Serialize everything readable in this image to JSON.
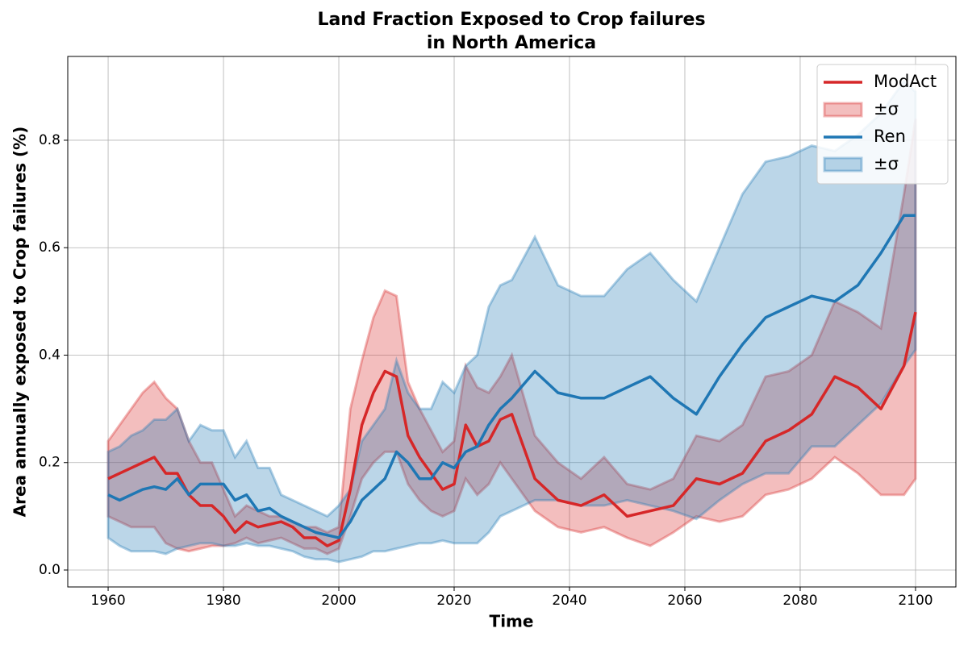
{
  "chart_data": {
    "type": "line",
    "title": "Land Fraction Exposed to Crop failures\nin North America",
    "xlabel": "Time",
    "ylabel": "Area annually exposed to Crop failures (%)",
    "xlim": [
      1953,
      2107
    ],
    "ylim": [
      -0.0315,
      0.956
    ],
    "xticks": [
      1960,
      1980,
      2000,
      2020,
      2040,
      2060,
      2080,
      2100
    ],
    "yticks": [
      {
        "value": 0,
        "label": "0.0"
      },
      0.2,
      0.4,
      0.6,
      0.8
    ],
    "grid": true,
    "legend": "upper right",
    "x": [
      1960,
      1962,
      1964,
      1966,
      1968,
      1970,
      1972,
      1974,
      1976,
      1978,
      1980,
      1982,
      1984,
      1986,
      1988,
      1990,
      1992,
      1994,
      1996,
      1998,
      2000,
      2002,
      2004,
      2006,
      2008,
      2010,
      2012,
      2014,
      2016,
      2018,
      2020,
      2022,
      2024,
      2026,
      2028,
      2030,
      2034,
      2038,
      2042,
      2046,
      2050,
      2054,
      2058,
      2062,
      2066,
      2070,
      2074,
      2078,
      2082,
      2086,
      2090,
      2094,
      2098,
      2100
    ],
    "series": [
      {
        "name": "ModAct",
        "color": "#d62728",
        "values": [
          0.17,
          0.18,
          0.19,
          0.2,
          0.21,
          0.18,
          0.18,
          0.14,
          0.12,
          0.12,
          0.1,
          0.07,
          0.09,
          0.08,
          0.085,
          0.09,
          0.08,
          0.06,
          0.06,
          0.045,
          0.055,
          0.15,
          0.27,
          0.33,
          0.37,
          0.36,
          0.25,
          0.21,
          0.18,
          0.15,
          0.16,
          0.27,
          0.23,
          0.24,
          0.28,
          0.29,
          0.17,
          0.13,
          0.12,
          0.14,
          0.1,
          0.11,
          0.12,
          0.17,
          0.16,
          0.18,
          0.24,
          0.26,
          0.29,
          0.36,
          0.34,
          0.3,
          0.38,
          0.48
        ],
        "band": {
          "name": "±σ",
          "color": "#d62728",
          "lower": [
            0.1,
            0.09,
            0.08,
            0.08,
            0.08,
            0.05,
            0.04,
            0.035,
            0.04,
            0.045,
            0.045,
            0.05,
            0.06,
            0.05,
            0.055,
            0.06,
            0.05,
            0.04,
            0.04,
            0.03,
            0.04,
            0.1,
            0.17,
            0.2,
            0.22,
            0.22,
            0.16,
            0.13,
            0.11,
            0.1,
            0.11,
            0.17,
            0.14,
            0.16,
            0.2,
            0.17,
            0.11,
            0.08,
            0.07,
            0.08,
            0.06,
            0.045,
            0.07,
            0.1,
            0.09,
            0.1,
            0.14,
            0.15,
            0.17,
            0.21,
            0.18,
            0.14,
            0.14,
            0.17
          ],
          "upper": [
            0.24,
            0.27,
            0.3,
            0.33,
            0.35,
            0.32,
            0.3,
            0.24,
            0.2,
            0.2,
            0.15,
            0.1,
            0.12,
            0.11,
            0.1,
            0.1,
            0.09,
            0.08,
            0.08,
            0.07,
            0.08,
            0.3,
            0.39,
            0.47,
            0.52,
            0.51,
            0.35,
            0.3,
            0.26,
            0.22,
            0.24,
            0.38,
            0.34,
            0.33,
            0.36,
            0.4,
            0.25,
            0.2,
            0.17,
            0.21,
            0.16,
            0.15,
            0.17,
            0.25,
            0.24,
            0.27,
            0.36,
            0.37,
            0.4,
            0.5,
            0.48,
            0.45,
            0.7,
            0.84
          ]
        }
      },
      {
        "name": "Ren",
        "color": "#1f77b4",
        "values": [
          0.14,
          0.13,
          0.14,
          0.15,
          0.155,
          0.15,
          0.17,
          0.14,
          0.16,
          0.16,
          0.16,
          0.13,
          0.14,
          0.11,
          0.115,
          0.1,
          0.09,
          0.08,
          0.07,
          0.065,
          0.06,
          0.09,
          0.13,
          0.15,
          0.17,
          0.22,
          0.2,
          0.17,
          0.17,
          0.2,
          0.19,
          0.22,
          0.23,
          0.27,
          0.3,
          0.32,
          0.37,
          0.33,
          0.32,
          0.32,
          0.34,
          0.36,
          0.32,
          0.29,
          0.36,
          0.42,
          0.47,
          0.49,
          0.51,
          0.5,
          0.53,
          0.59,
          0.66,
          0.66
        ],
        "band": {
          "name": "±σ",
          "color": "#1f77b4",
          "lower": [
            0.06,
            0.045,
            0.035,
            0.035,
            0.035,
            0.03,
            0.04,
            0.045,
            0.05,
            0.05,
            0.045,
            0.045,
            0.05,
            0.045,
            0.045,
            0.04,
            0.035,
            0.025,
            0.02,
            0.02,
            0.015,
            0.02,
            0.025,
            0.035,
            0.035,
            0.04,
            0.045,
            0.05,
            0.05,
            0.055,
            0.05,
            0.05,
            0.05,
            0.07,
            0.1,
            0.11,
            0.13,
            0.13,
            0.12,
            0.12,
            0.13,
            0.12,
            0.11,
            0.095,
            0.13,
            0.16,
            0.18,
            0.18,
            0.23,
            0.23,
            0.27,
            0.31,
            0.38,
            0.41
          ],
          "upper": [
            0.22,
            0.23,
            0.25,
            0.26,
            0.28,
            0.28,
            0.3,
            0.24,
            0.27,
            0.26,
            0.26,
            0.21,
            0.24,
            0.19,
            0.19,
            0.14,
            0.13,
            0.12,
            0.11,
            0.1,
            0.12,
            0.15,
            0.24,
            0.27,
            0.3,
            0.39,
            0.33,
            0.3,
            0.3,
            0.35,
            0.33,
            0.38,
            0.4,
            0.49,
            0.53,
            0.54,
            0.62,
            0.53,
            0.51,
            0.51,
            0.56,
            0.59,
            0.54,
            0.5,
            0.6,
            0.7,
            0.76,
            0.77,
            0.79,
            0.78,
            0.81,
            0.85,
            0.91,
            0.89
          ]
        }
      }
    ]
  }
}
